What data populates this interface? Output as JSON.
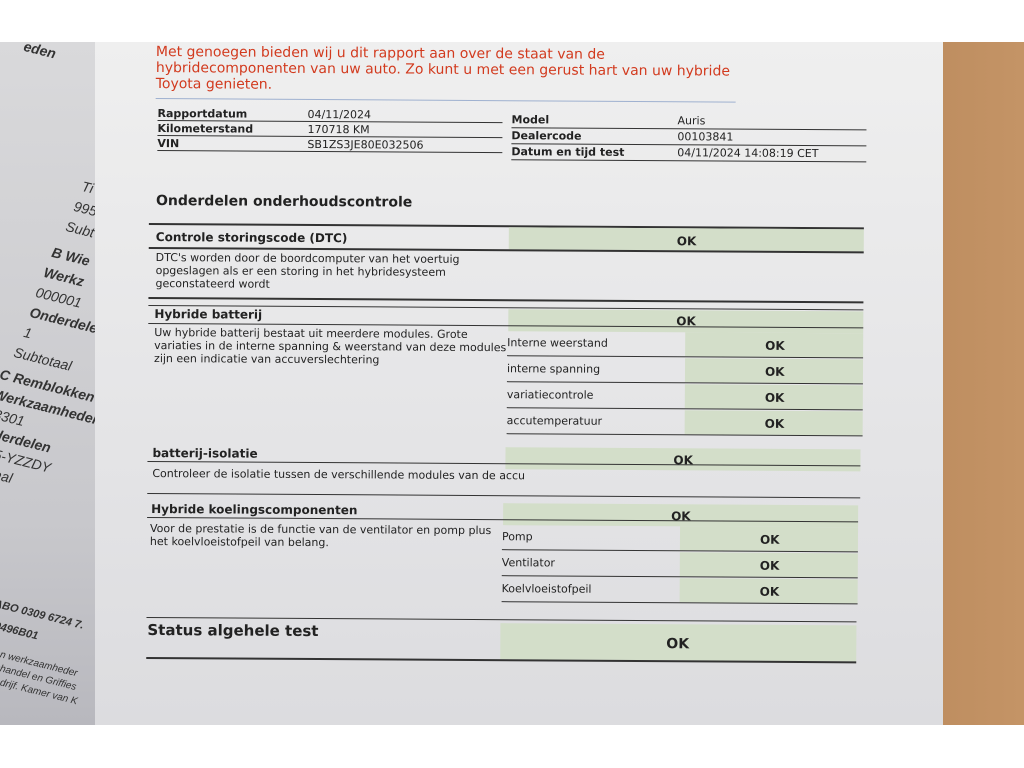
{
  "background_sheet": {
    "lines": [
      "eden",
      "Ti",
      "995",
      "Subt",
      "B Wie",
      "Werkz",
      "000001",
      "Onderdele",
      "1",
      "Subtotaal",
      "C Remblokken",
      "Werkzaamheder",
      "3301",
      "derdelen",
      "5-YZZDY",
      "aal",
      "ABO 0309 6724 7.",
      "9496B01",
      "en werkzaamheder",
      "phandel en Griffies",
      "edrijf. Kamer van K"
    ]
  },
  "intro": "Met genoegen bieden wij u dit rapport aan over de staat van de hybridecomponenten van uw auto. Zo kunt u met een gerust hart van uw hybride Toyota genieten.",
  "info": {
    "rapportdatum_label": "Rapportdatum",
    "rapportdatum": "04/11/2024",
    "km_label": "Kilometerstand",
    "km": "170718 KM",
    "vin_label": "VIN",
    "vin": "SB1ZS3JE80E032506",
    "model_label": "Model",
    "model": "Auris",
    "dealer_label": "Dealercode",
    "dealer": "00103841",
    "datetime_label": "Datum en tijd test",
    "datetime": "04/11/2024 14:08:19 CET"
  },
  "section_title": "Onderdelen onderhoudscontrole",
  "dtc": {
    "title": "Controle storingscode (DTC)",
    "result": "OK",
    "desc": "DTC's worden door de boordcomputer van het voertuig opgeslagen als er een storing in het hybridesysteem geconstateerd wordt"
  },
  "battery": {
    "title": "Hybride batterij",
    "result": "OK",
    "desc": "Uw hybride batterij bestaat uit meerdere modules. Grote variaties in de interne spanning & weerstand van deze modules zijn een indicatie van accuverslechtering",
    "items": [
      {
        "label": "Interne weerstand",
        "result": "OK"
      },
      {
        "label": "interne spanning",
        "result": "OK"
      },
      {
        "label": "variatiecontrole",
        "result": "OK"
      },
      {
        "label": "accutemperatuur",
        "result": "OK"
      }
    ]
  },
  "isolation": {
    "title": "batterij-isolatie",
    "result": "OK",
    "desc": "Controleer de isolatie tussen de verschillende modules van de accu"
  },
  "cooling": {
    "title": "Hybride koelingscomponenten",
    "result": "OK",
    "desc": "Voor de prestatie is de functie van de ventilator en pomp plus het koelvloeistofpeil van belang.",
    "items": [
      {
        "label": "Pomp",
        "result": "OK"
      },
      {
        "label": "Ventilator",
        "result": "OK"
      },
      {
        "label": "Koelvloeistofpeil",
        "result": "OK"
      }
    ]
  },
  "status": {
    "title": "Status algehele test",
    "result": "OK"
  },
  "colors": {
    "intro_red": "#d23a1e",
    "ok_green": "#d3dec9"
  }
}
